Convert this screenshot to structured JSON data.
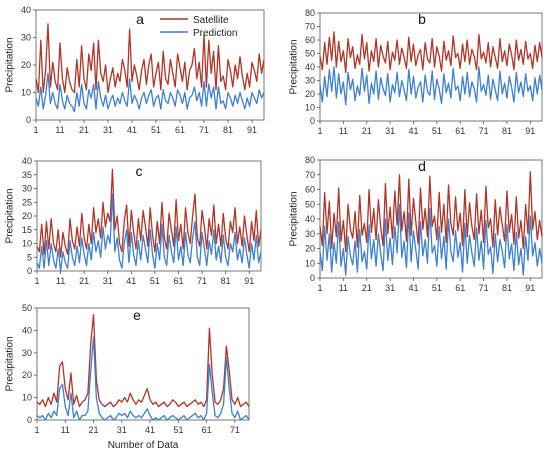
{
  "figure": {
    "y_label": "Precipitation",
    "x_label": "Number of Data",
    "legend": {
      "entries": [
        "Satellite",
        "Prediction"
      ],
      "placement": "top-right of panel a"
    },
    "colors": {
      "satellite": "#b03427",
      "prediction": "#3d7fd0"
    }
  },
  "chart_data": [
    {
      "type": "line",
      "panel": "a",
      "xlim": [
        1,
        96
      ],
      "ylim": [
        0,
        40
      ],
      "yticks": [
        0,
        10,
        20,
        30,
        40
      ],
      "xticks": [
        1,
        11,
        21,
        31,
        41,
        51,
        61,
        71,
        81,
        91
      ],
      "series": [
        {
          "name": "Satellite",
          "values": [
            15,
            10,
            29,
            10,
            18,
            35,
            12,
            21,
            14,
            11,
            28,
            15,
            10,
            19,
            14,
            11,
            10,
            22,
            12,
            27,
            15,
            11,
            24,
            18,
            28,
            11,
            29,
            17,
            14,
            20,
            10,
            15,
            19,
            12,
            17,
            14,
            22,
            18,
            12,
            33,
            14,
            20,
            16,
            11,
            18,
            22,
            13,
            20,
            24,
            12,
            17,
            21,
            11,
            25,
            15,
            13,
            22,
            17,
            12,
            24,
            19,
            14,
            21,
            11,
            18,
            20,
            26,
            15,
            21,
            12,
            31,
            12,
            29,
            17,
            25,
            11,
            27,
            14,
            16,
            11,
            22,
            18,
            12,
            20,
            15,
            23,
            16,
            11,
            17,
            12,
            21,
            18,
            14,
            24,
            17,
            22
          ]
        },
        {
          "name": "Prediction",
          "values": [
            8,
            5,
            12,
            4,
            9,
            17,
            6,
            10,
            6,
            4,
            13,
            7,
            4,
            9,
            6,
            5,
            3,
            10,
            5,
            13,
            6,
            4,
            11,
            8,
            13,
            4,
            14,
            8,
            5,
            9,
            4,
            7,
            9,
            5,
            8,
            6,
            10,
            7,
            5,
            15,
            6,
            9,
            7,
            4,
            8,
            10,
            6,
            9,
            11,
            5,
            8,
            9,
            4,
            11,
            7,
            6,
            10,
            8,
            5,
            11,
            9,
            6,
            10,
            4,
            8,
            9,
            12,
            7,
            10,
            5,
            14,
            5,
            13,
            8,
            12,
            4,
            12,
            6,
            7,
            4,
            10,
            8,
            5,
            9,
            6,
            10,
            7,
            4,
            8,
            5,
            10,
            8,
            6,
            11,
            8,
            10
          ]
        }
      ]
    },
    {
      "type": "line",
      "panel": "b",
      "xlim": [
        1,
        96
      ],
      "ylim": [
        0,
        80
      ],
      "yticks": [
        0,
        10,
        20,
        30,
        40,
        50,
        60,
        70,
        80
      ],
      "xticks": [
        1,
        11,
        21,
        31,
        41,
        51,
        61,
        71,
        81,
        91
      ],
      "series": [
        {
          "name": "Satellite",
          "values": [
            48,
            38,
            58,
            42,
            62,
            45,
            66,
            40,
            59,
            44,
            52,
            36,
            61,
            47,
            55,
            39,
            49,
            42,
            64,
            46,
            58,
            37,
            52,
            44,
            61,
            40,
            56,
            48,
            43,
            59,
            38,
            51,
            45,
            60,
            42,
            54,
            47,
            39,
            62,
            44,
            57,
            41,
            49,
            53,
            38,
            58,
            46,
            43,
            61,
            40,
            55,
            48,
            37,
            59,
            45,
            52,
            41,
            63,
            47,
            50,
            39,
            57,
            44,
            60,
            42,
            53,
            48,
            38,
            64,
            46,
            51,
            43,
            58,
            40,
            55,
            47,
            39,
            61,
            44,
            52,
            41,
            57,
            49,
            38,
            60,
            45,
            53,
            42,
            59,
            46,
            50,
            39,
            56,
            44,
            58,
            47
          ]
        },
        {
          "name": "Prediction",
          "values": [
            27,
            14,
            33,
            18,
            38,
            22,
            40,
            17,
            35,
            20,
            29,
            12,
            36,
            23,
            31,
            15,
            26,
            19,
            39,
            22,
            34,
            13,
            28,
            20,
            37,
            16,
            32,
            24,
            19,
            35,
            14,
            27,
            21,
            36,
            18,
            30,
            23,
            15,
            38,
            20,
            33,
            17,
            25,
            29,
            14,
            34,
            22,
            19,
            37,
            16,
            31,
            24,
            13,
            35,
            21,
            28,
            17,
            39,
            23,
            26,
            15,
            33,
            20,
            36,
            18,
            29,
            24,
            14,
            40,
            22,
            27,
            19,
            34,
            16,
            31,
            23,
            15,
            37,
            20,
            28,
            17,
            33,
            25,
            14,
            36,
            21,
            29,
            18,
            35,
            22,
            26,
            15,
            32,
            20,
            34,
            23
          ]
        }
      ]
    },
    {
      "type": "line",
      "panel": "c",
      "xlim": [
        1,
        96
      ],
      "ylim": [
        0,
        40
      ],
      "yticks": [
        0,
        5,
        10,
        15,
        20,
        25,
        30,
        35,
        40
      ],
      "xticks": [
        1,
        11,
        21,
        31,
        41,
        51,
        61,
        71,
        81,
        91
      ],
      "series": [
        {
          "name": "Satellite",
          "values": [
            9,
            7,
            17,
            6,
            18,
            8,
            19,
            10,
            7,
            15,
            5,
            14,
            9,
            6,
            19,
            11,
            8,
            16,
            9,
            21,
            12,
            8,
            17,
            10,
            23,
            14,
            19,
            12,
            25,
            16,
            21,
            18,
            37,
            15,
            20,
            10,
            7,
            18,
            24,
            9,
            22,
            14,
            8,
            19,
            11,
            22,
            16,
            9,
            23,
            13,
            7,
            18,
            10,
            25,
            12,
            8,
            21,
            15,
            9,
            26,
            11,
            17,
            8,
            23,
            14,
            10,
            20,
            28,
            12,
            9,
            22,
            16,
            8,
            19,
            13,
            24,
            10,
            17,
            9,
            21,
            12,
            8,
            18,
            14,
            23,
            10,
            16,
            9,
            20,
            13,
            7,
            18,
            11,
            22,
            9,
            15
          ]
        },
        {
          "name": "Prediction",
          "values": [
            3,
            1,
            9,
            1,
            11,
            2,
            10,
            4,
            1,
            8,
            0,
            7,
            3,
            1,
            11,
            5,
            2,
            9,
            3,
            12,
            6,
            2,
            10,
            4,
            14,
            7,
            11,
            5,
            16,
            8,
            13,
            10,
            28,
            7,
            12,
            4,
            1,
            10,
            15,
            3,
            14,
            6,
            2,
            11,
            4,
            13,
            8,
            3,
            15,
            6,
            1,
            10,
            4,
            17,
            5,
            2,
            13,
            7,
            3,
            16,
            4,
            9,
            2,
            14,
            6,
            3,
            12,
            18,
            5,
            2,
            14,
            8,
            2,
            11,
            6,
            15,
            4,
            9,
            3,
            13,
            5,
            2,
            10,
            7,
            14,
            4,
            8,
            3,
            12,
            6,
            1,
            10,
            4,
            13,
            3,
            7
          ]
        }
      ]
    },
    {
      "type": "line",
      "panel": "d",
      "xlim": [
        1,
        96
      ],
      "ylim": [
        0,
        80
      ],
      "yticks": [
        0,
        10,
        20,
        30,
        40,
        50,
        60,
        70,
        80
      ],
      "xticks": [
        1,
        11,
        21,
        31,
        41,
        51,
        61,
        71,
        81,
        91
      ],
      "series": [
        {
          "name": "Satellite",
          "values": [
            35,
            22,
            58,
            30,
            52,
            20,
            44,
            28,
            61,
            25,
            39,
            18,
            50,
            33,
            27,
            45,
            21,
            56,
            29,
            37,
            24,
            60,
            31,
            47,
            26,
            53,
            34,
            22,
            64,
            30,
            48,
            27,
            59,
            36,
            70,
            32,
            45,
            25,
            67,
            29,
            54,
            38,
            23,
            61,
            33,
            47,
            28,
            69,
            35,
            42,
            26,
            58,
            31,
            50,
            24,
            63,
            37,
            29,
            55,
            32,
            44,
            22,
            60,
            28,
            51,
            35,
            26,
            57,
            30,
            46,
            24,
            62,
            34,
            40,
            21,
            53,
            29,
            48,
            36,
            25,
            59,
            31,
            43,
            23,
            55,
            27,
            39,
            20,
            50,
            30,
            72,
            33,
            45,
            26,
            39,
            28
          ]
        },
        {
          "name": "Prediction",
          "values": [
            18,
            5,
            35,
            12,
            30,
            4,
            24,
            10,
            38,
            8,
            20,
            2,
            28,
            15,
            9,
            25,
            4,
            33,
            11,
            18,
            6,
            36,
            13,
            26,
            8,
            30,
            16,
            5,
            40,
            12,
            27,
            9,
            35,
            17,
            50,
            14,
            25,
            7,
            44,
            11,
            32,
            19,
            6,
            38,
            15,
            26,
            10,
            47,
            17,
            22,
            8,
            35,
            13,
            28,
            6,
            40,
            18,
            11,
            32,
            14,
            24,
            4,
            37,
            10,
            29,
            17,
            8,
            34,
            12,
            25,
            6,
            39,
            16,
            21,
            3,
            30,
            11,
            26,
            18,
            7,
            36,
            13,
            23,
            5,
            31,
            9,
            20,
            2,
            28,
            12,
            42,
            15,
            24,
            8,
            20,
            10
          ]
        }
      ]
    },
    {
      "type": "line",
      "panel": "e",
      "xlim": [
        1,
        76
      ],
      "ylim": [
        0,
        50
      ],
      "yticks": [
        0,
        10,
        20,
        30,
        40,
        50
      ],
      "xticks": [
        1,
        11,
        21,
        31,
        41,
        51,
        61,
        71
      ],
      "series": [
        {
          "name": "Satellite",
          "values": [
            8,
            7,
            9,
            6,
            10,
            7,
            12,
            8,
            24,
            26,
            14,
            9,
            21,
            7,
            11,
            6,
            8,
            9,
            12,
            34,
            47,
            18,
            9,
            7,
            6,
            7,
            8,
            6,
            7,
            9,
            8,
            10,
            8,
            12,
            9,
            7,
            9,
            8,
            11,
            14,
            9,
            7,
            8,
            6,
            7,
            8,
            6,
            7,
            9,
            8,
            6,
            7,
            8,
            6,
            7,
            8,
            9,
            7,
            8,
            6,
            9,
            41,
            20,
            8,
            7,
            9,
            14,
            33,
            22,
            9,
            7,
            10,
            6,
            7,
            8,
            6
          ]
        },
        {
          "name": "Prediction",
          "values": [
            2,
            1,
            2,
            0,
            3,
            1,
            4,
            2,
            14,
            16,
            6,
            2,
            12,
            1,
            4,
            0,
            2,
            2,
            4,
            22,
            37,
            10,
            3,
            1,
            0,
            1,
            2,
            0,
            1,
            3,
            2,
            3,
            1,
            4,
            2,
            1,
            2,
            1,
            3,
            5,
            2,
            0,
            1,
            0,
            1,
            2,
            0,
            1,
            2,
            1,
            0,
            1,
            2,
            0,
            1,
            2,
            3,
            1,
            2,
            0,
            3,
            25,
            12,
            2,
            1,
            3,
            7,
            28,
            14,
            3,
            1,
            4,
            0,
            1,
            2,
            0
          ]
        }
      ]
    }
  ]
}
